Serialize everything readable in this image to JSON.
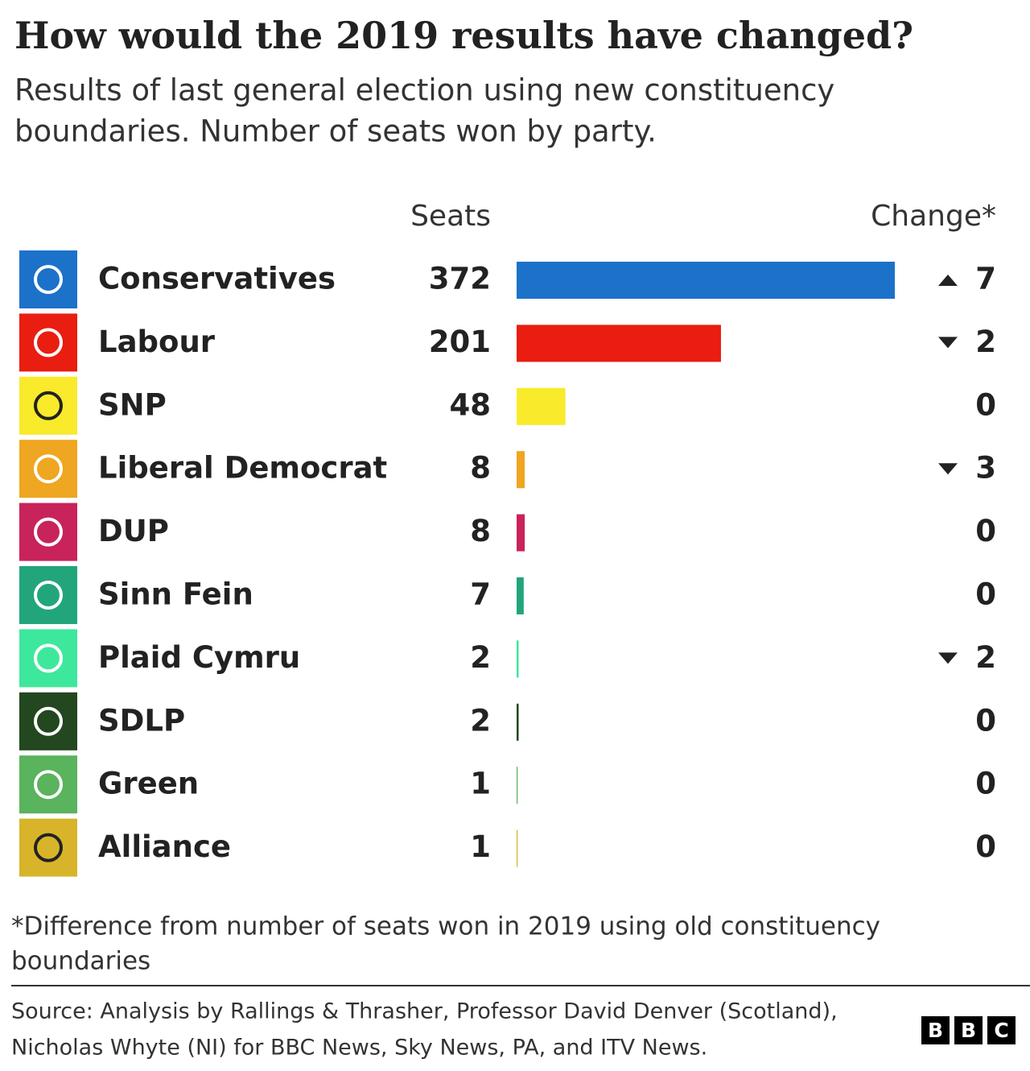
{
  "chart_data": {
    "type": "bar",
    "title": "How would the 2019 results have changed?",
    "subtitle": [
      "Results of last general election using new constituency",
      "boundaries. Number of seats won by party."
    ],
    "seats_header": "Seats",
    "change_header": "Change*",
    "categories": [
      "Conservatives",
      "Labour",
      "SNP",
      "Liberal Democrat",
      "DUP",
      "Sinn Fein",
      "Plaid Cymru",
      "SDLP",
      "Green",
      "Alliance"
    ],
    "values": [
      372,
      201,
      48,
      8,
      8,
      7,
      2,
      2,
      1,
      1
    ],
    "colors": [
      "#1c71c9",
      "#e91d10",
      "#f9ea2b",
      "#efa620",
      "#c8235a",
      "#23a57c",
      "#3de89c",
      "#23471f",
      "#5ab35d",
      "#d8b42a"
    ],
    "change": {
      "values": [
        7,
        -2,
        0,
        -3,
        0,
        0,
        -2,
        0,
        0,
        0
      ],
      "value_labels": [
        "7",
        "2",
        "0",
        "3",
        "0",
        "0",
        "2",
        "0",
        "0",
        "0"
      ]
    },
    "footnote": [
      "*Difference from number of seats won in 2019 using old constituency",
      "boundaries"
    ],
    "source": [
      "Source: Analysis by Rallings & Thrasher, Professor David Denver (Scotland),",
      "Nicholas Whyte (NI) for BBC News, Sky News, PA, and ITV News."
    ],
    "logo": [
      "B",
      "B",
      "C"
    ]
  }
}
